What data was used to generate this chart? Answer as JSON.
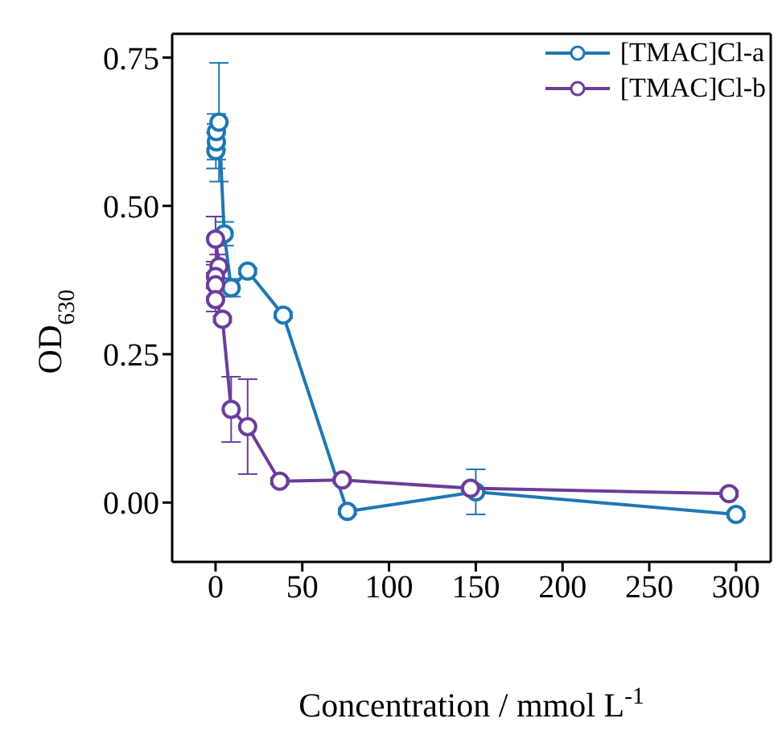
{
  "chart_data": {
    "type": "line",
    "xlabel": "Concentration / mmol L$^{-1}$",
    "ylabel": "OD$_{630}$",
    "xlim": [
      -25,
      320
    ],
    "xticks": [
      0,
      50,
      100,
      150,
      200,
      250,
      300
    ],
    "ylim": [
      -0.1,
      0.79
    ],
    "yticks": [
      {
        "value": 0,
        "label": "0.00"
      },
      {
        "value": 0.25,
        "label": "0.25"
      },
      {
        "value": 0.5,
        "label": "0.50"
      },
      {
        "value": 0.75,
        "label": "0.75"
      }
    ],
    "marker": "circle",
    "line_style": "solid",
    "legend": "top right",
    "series": [
      {
        "name": "[TMAC]Cl-a",
        "color": "#1f77b4",
        "x": [
          0.2,
          0.5,
          0.5,
          2,
          5,
          9,
          18.5,
          39,
          76,
          150,
          300
        ],
        "values": [
          0.593,
          0.608,
          0.625,
          0.641,
          0.453,
          0.362,
          0.39,
          0.316,
          -0.015,
          0.018,
          -0.02
        ],
        "errors": [
          0.03,
          0.03,
          0.03,
          0.1,
          0.02,
          0.015,
          0.005,
          0.005,
          0.005,
          0.038,
          0.005
        ]
      },
      {
        "name": "[TMAC]Cl-b",
        "color": "#6a3d9a",
        "x": [
          0,
          2,
          0,
          0,
          0,
          4,
          9,
          18.5,
          37,
          73,
          147,
          296
        ],
        "values": [
          0.444,
          0.398,
          0.381,
          0.367,
          0.342,
          0.309,
          0.157,
          0.128,
          0.036,
          0.038,
          0.024,
          0.015
        ],
        "errors": [
          0.038,
          0.02,
          0.02,
          0.02,
          0.02,
          0.005,
          0.055,
          0.08,
          0.005,
          0.005,
          0.005,
          0.005
        ]
      }
    ]
  }
}
